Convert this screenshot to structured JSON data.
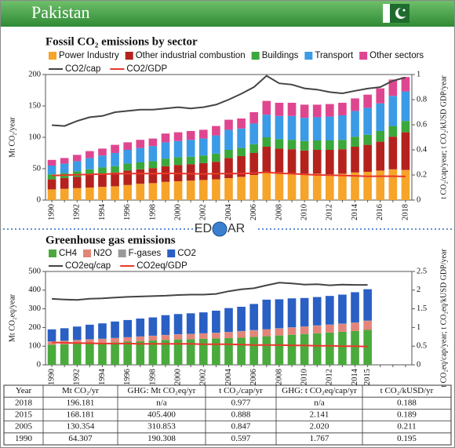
{
  "header": {
    "title": "Pakistan"
  },
  "logo": {
    "left": "ED",
    "right": "AR"
  },
  "chart_data": [
    {
      "type": "stacked_bar",
      "title": "Fossil CO₂ emissions by sector",
      "ylabel": "Mt CO₂/year",
      "y2label": "t CO₂/cap/year; t CO₂/kUSD GDP/year",
      "categories": [
        "1990",
        null,
        "1992",
        null,
        "1994",
        null,
        "1996",
        null,
        "1998",
        null,
        "2000",
        null,
        "2002",
        null,
        "2004",
        null,
        "2006",
        null,
        "2008",
        null,
        "2010",
        null,
        "2012",
        null,
        "2014",
        null,
        "2016",
        null,
        "2018"
      ],
      "ylim": [
        0,
        200
      ],
      "yticks": [
        0,
        50,
        100,
        150,
        200
      ],
      "y2lim": [
        0,
        1
      ],
      "y2ticks": [
        0,
        0.2,
        0.4,
        0.6,
        0.8,
        1
      ],
      "series": [
        {
          "name": "Power Industry",
          "color": "#f6a42a",
          "values": [
            17,
            18,
            19,
            20,
            21,
            22,
            24,
            26,
            27,
            29,
            30,
            31,
            32,
            33,
            35,
            37,
            40,
            45,
            44,
            43,
            42,
            42,
            41,
            42,
            44,
            45,
            47,
            49,
            48
          ]
        },
        {
          "name": "Other industrial combustion",
          "color": "#b5221e",
          "values": [
            16,
            17,
            18,
            20,
            21,
            22,
            23,
            23,
            24,
            25,
            26,
            26,
            27,
            28,
            32,
            33,
            35,
            40,
            38,
            38,
            37,
            38,
            39,
            39,
            41,
            43,
            46,
            52,
            60
          ]
        },
        {
          "name": "Buildings",
          "color": "#3aa83a",
          "values": [
            8,
            8,
            9,
            9,
            10,
            10,
            11,
            11,
            11,
            12,
            12,
            12,
            12,
            13,
            13,
            13,
            14,
            15,
            15,
            15,
            15,
            15,
            15,
            15,
            16,
            16,
            17,
            17,
            18
          ]
        },
        {
          "name": "Transport",
          "color": "#3b9be6",
          "values": [
            14,
            15,
            16,
            18,
            19,
            21,
            22,
            23,
            24,
            26,
            26,
            27,
            27,
            29,
            32,
            31,
            33,
            36,
            37,
            38,
            37,
            37,
            38,
            39,
            41,
            43,
            44,
            48,
            47
          ]
        },
        {
          "name": "Other sectors",
          "color": "#df4690",
          "values": [
            9,
            9,
            10,
            11,
            11,
            13,
            12,
            13,
            12,
            14,
            14,
            14,
            14,
            15,
            16,
            16,
            18,
            22,
            21,
            21,
            21,
            20,
            20,
            20,
            20,
            21,
            24,
            26,
            23
          ]
        },
        {
          "name": "CO2/cap",
          "color": "#444444",
          "kind": "line",
          "axis": "y2",
          "values": [
            0.597,
            0.59,
            0.63,
            0.66,
            0.67,
            0.7,
            0.71,
            0.72,
            0.72,
            0.73,
            0.74,
            0.73,
            0.74,
            0.76,
            0.8,
            0.847,
            0.9,
            0.99,
            0.93,
            0.92,
            0.89,
            0.88,
            0.86,
            0.85,
            0.87,
            0.888,
            0.9,
            0.95,
            0.977
          ]
        },
        {
          "name": "CO2/GDP",
          "color": "#e8382b",
          "kind": "line",
          "axis": "y2",
          "values": [
            0.195,
            0.198,
            0.202,
            0.205,
            0.206,
            0.21,
            0.21,
            0.212,
            0.21,
            0.213,
            0.212,
            0.21,
            0.208,
            0.21,
            0.212,
            0.211,
            0.215,
            0.222,
            0.213,
            0.21,
            0.205,
            0.2,
            0.198,
            0.196,
            0.193,
            0.189,
            0.19,
            0.19,
            0.188
          ]
        }
      ]
    },
    {
      "type": "stacked_bar",
      "title": "Greenhouse gas emissions",
      "ylabel": "Mt CO₂eq/year",
      "y2label": "t CO₂eq/cap/year; t CO₂eq/kUSD GDP/year",
      "categories": [
        "1990",
        null,
        "1992",
        null,
        "1994",
        null,
        "1996",
        null,
        "1998",
        null,
        "2000",
        null,
        "2002",
        null,
        "2004",
        null,
        "2006",
        null,
        "2008",
        null,
        "2010",
        null,
        "2012",
        null,
        "2014",
        "2015",
        null,
        null,
        null
      ],
      "ylim": [
        0,
        500
      ],
      "yticks": [
        0,
        100,
        200,
        300,
        400,
        500
      ],
      "y2lim": [
        0,
        2.5
      ],
      "y2ticks": [
        0,
        0.5,
        1,
        1.5,
        2,
        2.5
      ],
      "series": [
        {
          "name": "CH4",
          "color": "#4aaa3c",
          "values": [
            108,
            110,
            113,
            116,
            118,
            121,
            124,
            127,
            130,
            133,
            136,
            137,
            139,
            141,
            143,
            145,
            149,
            153,
            157,
            161,
            165,
            169,
            173,
            177,
            181,
            187,
            null,
            null,
            null
          ]
        },
        {
          "name": "N2O",
          "color": "#e2857a",
          "values": [
            17,
            18,
            19,
            20,
            21,
            22,
            23,
            24,
            25,
            26,
            27,
            28,
            29,
            30,
            32,
            34,
            35,
            36,
            37,
            38,
            39,
            40,
            41,
            42,
            44,
            48,
            null,
            null,
            null
          ]
        },
        {
          "name": "F-gases",
          "color": "#9a9a9a",
          "values": [
            1,
            1,
            1,
            1,
            1,
            1,
            1,
            1,
            1,
            1,
            1,
            1,
            1,
            1,
            1,
            2,
            2,
            2,
            2,
            2,
            2,
            2,
            2,
            2,
            2,
            2,
            null,
            null,
            null
          ]
        },
        {
          "name": "CO2",
          "color": "#2a5fc4",
          "values": [
            64,
            67,
            72,
            78,
            82,
            88,
            92,
            96,
            98,
            106,
            108,
            110,
            112,
            118,
            128,
            130,
            140,
            158,
            155,
            155,
            152,
            152,
            153,
            155,
            162,
            168,
            null,
            null,
            null
          ]
        },
        {
          "name": "CO2eq/cap",
          "color": "#444444",
          "kind": "line",
          "axis": "y2",
          "values": [
            1.767,
            1.75,
            1.74,
            1.77,
            1.78,
            1.8,
            1.82,
            1.83,
            1.84,
            1.85,
            1.87,
            1.88,
            1.88,
            1.9,
            1.97,
            2.02,
            2.05,
            2.13,
            2.2,
            2.18,
            2.15,
            2.16,
            2.13,
            2.15,
            2.14,
            2.141,
            null,
            null,
            null
          ]
        },
        {
          "name": "CO2eq/GDP",
          "color": "#e8382b",
          "kind": "line",
          "axis": "y2",
          "values": [
            0.6,
            0.59,
            0.58,
            0.58,
            0.57,
            0.57,
            0.57,
            0.56,
            0.56,
            0.56,
            0.56,
            0.56,
            0.55,
            0.55,
            0.55,
            0.54,
            0.53,
            0.53,
            0.53,
            0.52,
            0.52,
            0.51,
            0.51,
            0.5,
            0.5,
            0.49,
            null,
            null,
            null
          ]
        }
      ]
    }
  ],
  "table": {
    "columns": [
      "Year",
      "Mt CO₂/yr",
      "GHG: Mt CO₂eq/yr",
      "t CO₂/cap/yr",
      "GHG: t CO₂eq/cap/yr",
      "t CO₂/kUSD/yr"
    ],
    "rows": [
      [
        "2018",
        "196.181",
        "n/a",
        "0.977",
        "n/a",
        "0.188"
      ],
      [
        "2015",
        "168.181",
        "405.400",
        "0.888",
        "2.141",
        "0.189"
      ],
      [
        "2005",
        "130.354",
        "310.853",
        "0.847",
        "2.020",
        "0.211"
      ],
      [
        "1990",
        "64.307",
        "190.308",
        "0.597",
        "1.767",
        "0.195"
      ]
    ]
  }
}
